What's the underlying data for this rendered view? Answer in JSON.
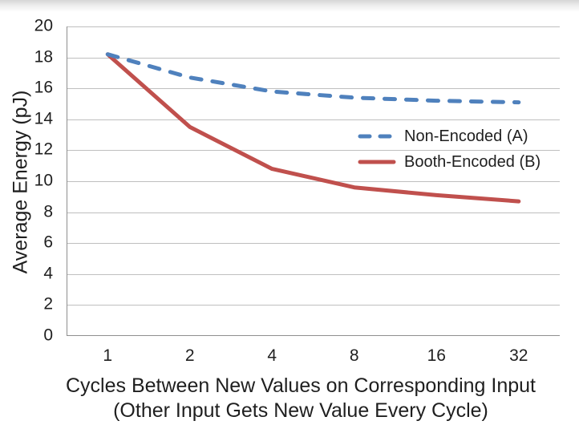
{
  "page": {
    "background": "#ffffff",
    "top_edge_shadow_from": "#d6d6d6",
    "top_edge_shadow_to": "#ffffff"
  },
  "chart_data": {
    "type": "line",
    "categories": [
      "1",
      "2",
      "4",
      "8",
      "16",
      "32"
    ],
    "series": [
      {
        "name": "Non-Encoded (A)",
        "values": [
          18.2,
          16.7,
          15.8,
          15.4,
          15.2,
          15.1
        ],
        "color": "#4F81BD",
        "line_style": "dashed",
        "stroke_width": 5
      },
      {
        "name": "Booth-Encoded (B)",
        "values": [
          18.2,
          13.5,
          10.8,
          9.6,
          9.1,
          8.7
        ],
        "color": "#C0504D",
        "line_style": "solid",
        "stroke_width": 5
      }
    ],
    "title": "",
    "xlabel": "Cycles Between New Values on Corresponding Input",
    "xlabel_line2": "(Other Input Gets New Value Every Cycle)",
    "ylabel": "Average Energy (pJ)",
    "ylim": [
      0,
      20
    ],
    "yticks": [
      0,
      2,
      4,
      6,
      8,
      10,
      12,
      14,
      16,
      18,
      20
    ],
    "grid": "horizontal",
    "gridline_color": "#BFBFBF",
    "axis_line_color": "#8F8F8F",
    "text_color": "#1f1f1f",
    "legend_position": "middle-right",
    "legend_border": "none"
  }
}
